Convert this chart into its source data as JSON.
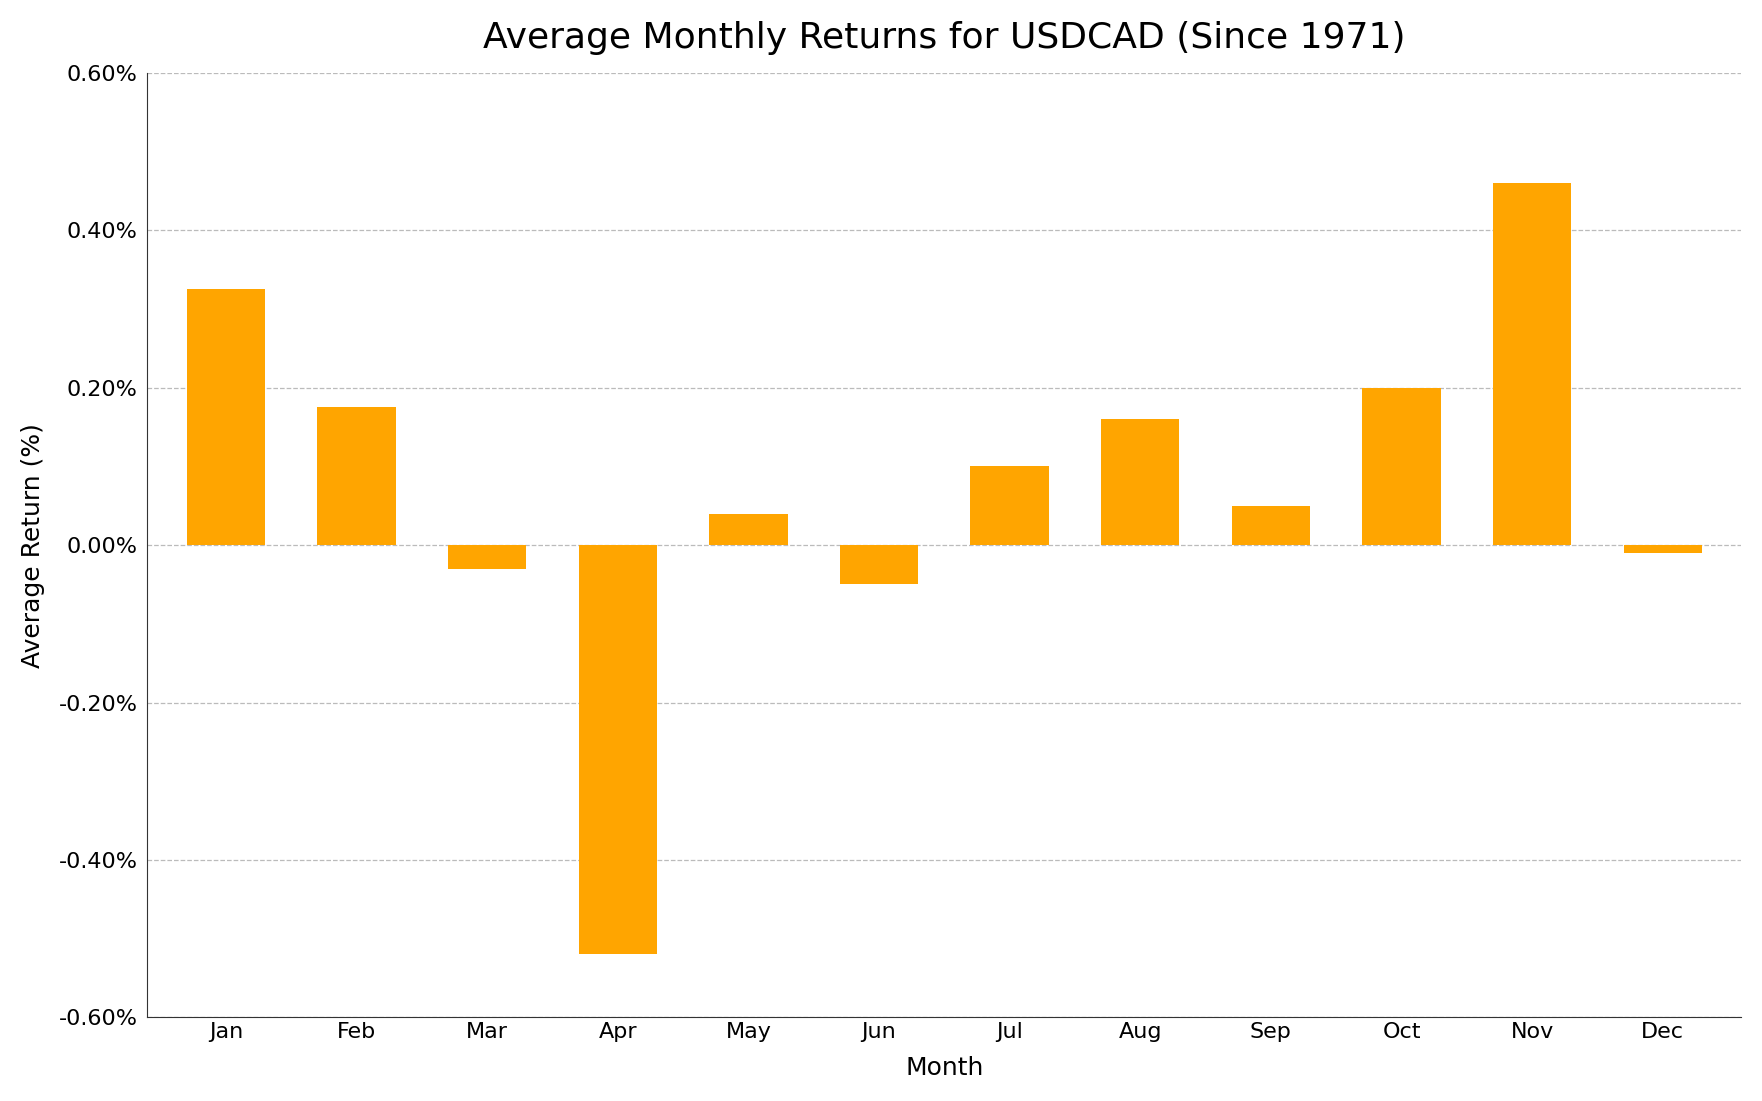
{
  "title": "Average Monthly Returns for USDCAD (Since 1971)",
  "xlabel": "Month",
  "ylabel": "Average Return (%)",
  "categories": [
    "Jan",
    "Feb",
    "Mar",
    "Apr",
    "May",
    "Jun",
    "Jul",
    "Aug",
    "Sep",
    "Oct",
    "Nov",
    "Dec"
  ],
  "values": [
    0.00325,
    0.00175,
    -0.0003,
    -0.0052,
    0.0004,
    -0.0005,
    0.001,
    0.0016,
    0.0005,
    0.002,
    0.0046,
    -0.0001
  ],
  "bar_color": "#FFA500",
  "background_color": "#FFFFFF",
  "ylim_pct": [
    -0.6,
    0.6
  ],
  "yticks_pct": [
    -0.6,
    -0.4,
    -0.2,
    0.0,
    0.2,
    0.4,
    0.6
  ],
  "grid_color": "#BBBBBB",
  "title_fontsize": 26,
  "axis_label_fontsize": 18,
  "tick_fontsize": 16
}
